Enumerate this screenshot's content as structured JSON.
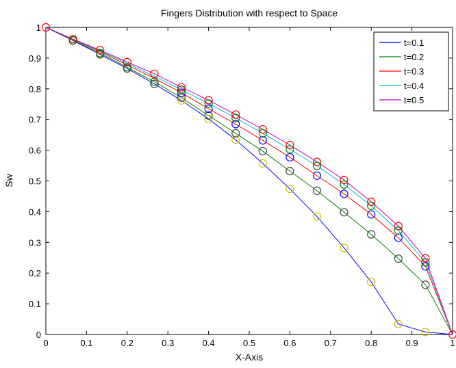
{
  "chart_data": {
    "type": "line",
    "title": "Fingers Distribution with respect to Space",
    "xlabel": "X-Axis",
    "ylabel": "Sw",
    "xlim": [
      0,
      1
    ],
    "ylim": [
      0,
      1
    ],
    "xticks": [
      "0",
      "0.1",
      "0.2",
      "0.3",
      "0.4",
      "0.5",
      "0.6",
      "0.7",
      "0.8",
      "0.9",
      "1"
    ],
    "yticks": [
      "0",
      "0.1",
      "0.2",
      "0.3",
      "0.4",
      "0.5",
      "0.6",
      "0.7",
      "0.8",
      "0.9",
      "1"
    ],
    "grid": false,
    "legend_position": "top-right",
    "x": [
      0,
      0.0667,
      0.1333,
      0.2,
      0.2667,
      0.3333,
      0.4,
      0.4667,
      0.5333,
      0.6,
      0.6667,
      0.7333,
      0.8,
      0.8667,
      0.9333,
      1
    ],
    "series": [
      {
        "name": "t=0.1",
        "color": "#0000ff",
        "values": [
          1,
          0.957,
          0.912,
          0.866,
          0.816,
          0.762,
          0.702,
          0.634,
          0.557,
          0.474,
          0.384,
          0.282,
          0.171,
          0.034,
          0.008,
          0
        ]
      },
      {
        "name": "t=0.2",
        "color": "#008000",
        "values": [
          1,
          0.958,
          0.916,
          0.87,
          0.823,
          0.771,
          0.713,
          0.655,
          0.597,
          0.532,
          0.468,
          0.398,
          0.326,
          0.247,
          0.162,
          0
        ]
      },
      {
        "name": "t=0.3",
        "color": "#ff0000",
        "values": [
          1,
          0.96,
          0.921,
          0.877,
          0.834,
          0.787,
          0.735,
          0.685,
          0.632,
          0.577,
          0.517,
          0.458,
          0.391,
          0.315,
          0.222,
          0
        ]
      },
      {
        "name": "t=0.4",
        "color": "#00bfbf",
        "values": [
          1,
          0.961,
          0.924,
          0.882,
          0.841,
          0.797,
          0.752,
          0.705,
          0.655,
          0.603,
          0.549,
          0.488,
          0.419,
          0.338,
          0.235,
          0
        ]
      },
      {
        "name": "t=0.5",
        "color": "#bf00bf",
        "values": [
          1,
          0.962,
          0.926,
          0.887,
          0.849,
          0.805,
          0.763,
          0.716,
          0.668,
          0.617,
          0.562,
          0.503,
          0.432,
          0.353,
          0.248,
          0
        ]
      }
    ],
    "markers": {
      "style": "circle",
      "groups": [
        {
          "color": "#d4c000",
          "points": [
            [
              0.3333,
              0.762
            ],
            [
              0.4,
              0.702
            ],
            [
              0.4667,
              0.634
            ],
            [
              0.5333,
              0.557
            ],
            [
              0.6,
              0.474
            ],
            [
              0.6667,
              0.384
            ],
            [
              0.7333,
              0.282
            ],
            [
              0.8,
              0.171
            ],
            [
              0.8667,
              0.034
            ],
            [
              0.9333,
              0.008
            ]
          ]
        },
        {
          "color": "#404040",
          "points": [
            [
              0.0667,
              0.957
            ],
            [
              0.1333,
              0.912
            ],
            [
              0.2,
              0.866
            ],
            [
              0.2667,
              0.816
            ],
            [
              0.3333,
              0.771
            ],
            [
              0.4,
              0.713
            ],
            [
              0.4667,
              0.655
            ],
            [
              0.5333,
              0.597
            ],
            [
              0.6,
              0.532
            ],
            [
              0.6667,
              0.468
            ],
            [
              0.7333,
              0.398
            ],
            [
              0.8,
              0.326
            ],
            [
              0.8667,
              0.247
            ],
            [
              0.9333,
              0.162
            ]
          ]
        },
        {
          "color": "#0000ff",
          "points": [
            [
              0.3333,
              0.787
            ],
            [
              0.4,
              0.735
            ],
            [
              0.4667,
              0.685
            ],
            [
              0.5333,
              0.632
            ],
            [
              0.6,
              0.577
            ],
            [
              0.6667,
              0.517
            ],
            [
              0.7333,
              0.458
            ],
            [
              0.8,
              0.391
            ],
            [
              0.8667,
              0.315
            ],
            [
              0.9333,
              0.222
            ]
          ]
        },
        {
          "color": "#008000",
          "points": [
            [
              0.0667,
              0.958
            ],
            [
              0.1333,
              0.916
            ],
            [
              0.2,
              0.87
            ],
            [
              0.2667,
              0.823
            ],
            [
              0.3333,
              0.797
            ],
            [
              0.4,
              0.752
            ],
            [
              0.4667,
              0.705
            ],
            [
              0.5333,
              0.655
            ],
            [
              0.6,
              0.603
            ],
            [
              0.6667,
              0.549
            ],
            [
              0.7333,
              0.488
            ],
            [
              0.8,
              0.419
            ],
            [
              0.8667,
              0.338
            ],
            [
              0.9333,
              0.235
            ]
          ]
        },
        {
          "color": "#ff0000",
          "points": [
            [
              0,
              1
            ],
            [
              0.0667,
              0.962
            ],
            [
              0.1333,
              0.926
            ],
            [
              0.2,
              0.887
            ],
            [
              0.2667,
              0.849
            ],
            [
              0.3333,
              0.805
            ],
            [
              0.4,
              0.763
            ],
            [
              0.4667,
              0.716
            ],
            [
              0.5333,
              0.668
            ],
            [
              0.6,
              0.617
            ],
            [
              0.6667,
              0.562
            ],
            [
              0.7333,
              0.503
            ],
            [
              0.8,
              0.432
            ],
            [
              0.8667,
              0.353
            ],
            [
              0.9333,
              0.248
            ],
            [
              1,
              0
            ]
          ]
        }
      ]
    }
  }
}
